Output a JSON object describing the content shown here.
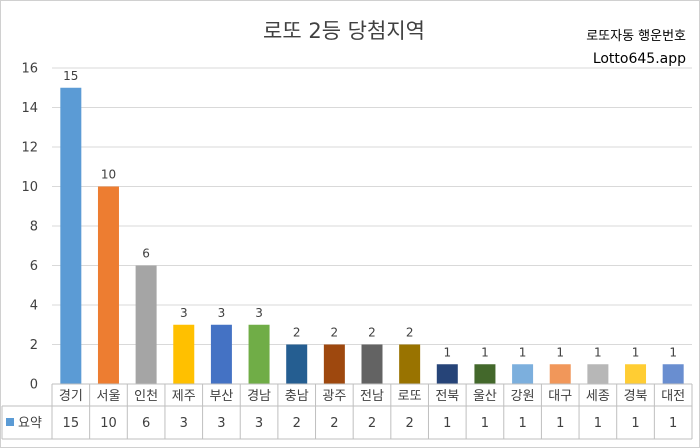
{
  "chart_data": {
    "type": "bar",
    "title": "로또 2등 당첨지역",
    "categories": [
      "경기",
      "서울",
      "인천",
      "제주",
      "부산",
      "경남",
      "충남",
      "광주",
      "전남",
      "로또",
      "전북",
      "울산",
      "강원",
      "대구",
      "세종",
      "경북",
      "대전"
    ],
    "series": [
      {
        "name": "요약",
        "values": [
          15,
          10,
          6,
          3,
          3,
          3,
          2,
          2,
          2,
          2,
          1,
          1,
          1,
          1,
          1,
          1,
          1
        ]
      }
    ],
    "bar_colors": [
      "#5b9bd5",
      "#ed7d31",
      "#a5a5a5",
      "#ffc000",
      "#4472c4",
      "#70ad47",
      "#255e91",
      "#9e480e",
      "#636363",
      "#997300",
      "#264478",
      "#43682b",
      "#7cafdd",
      "#f1975a",
      "#b7b7b7",
      "#ffcd33",
      "#698ed0"
    ],
    "ylim": [
      0,
      16
    ],
    "yticks": [
      0,
      2,
      4,
      6,
      8,
      10,
      12,
      14,
      16
    ],
    "grid": true,
    "legend": "data-table"
  },
  "branding": {
    "label": "로또자동 행운번호",
    "site": "Lotto645.app"
  }
}
